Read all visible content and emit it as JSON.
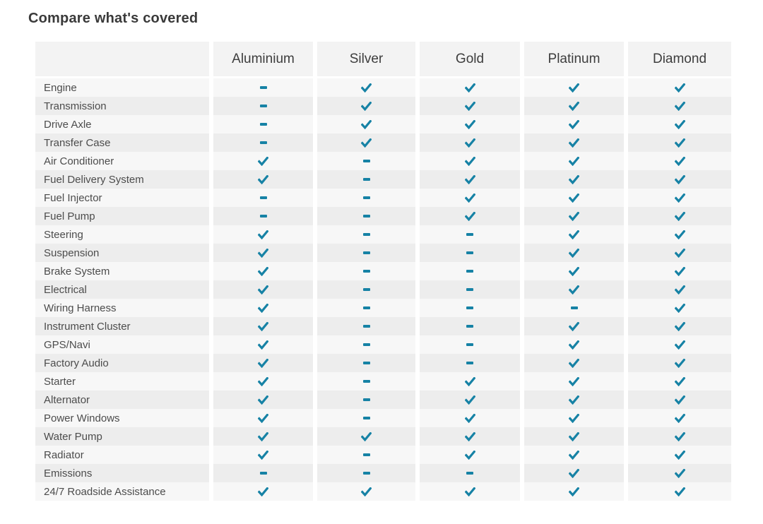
{
  "page": {
    "title": "Compare what's covered"
  },
  "table": {
    "columns": [
      "Aluminium",
      "Silver",
      "Gold",
      "Platinum",
      "Diamond"
    ],
    "icons": {
      "covered": "check-icon",
      "not_covered": "dash-icon"
    },
    "rows": [
      {
        "label": "Engine",
        "values": [
          false,
          true,
          true,
          true,
          true
        ]
      },
      {
        "label": "Transmission",
        "values": [
          false,
          true,
          true,
          true,
          true
        ]
      },
      {
        "label": "Drive Axle",
        "values": [
          false,
          true,
          true,
          true,
          true
        ]
      },
      {
        "label": "Transfer Case",
        "values": [
          false,
          true,
          true,
          true,
          true
        ]
      },
      {
        "label": "Air Conditioner",
        "values": [
          true,
          false,
          true,
          true,
          true
        ]
      },
      {
        "label": "Fuel Delivery System",
        "values": [
          true,
          false,
          true,
          true,
          true
        ]
      },
      {
        "label": "Fuel Injector",
        "values": [
          false,
          false,
          true,
          true,
          true
        ]
      },
      {
        "label": "Fuel Pump",
        "values": [
          false,
          false,
          true,
          true,
          true
        ]
      },
      {
        "label": "Steering",
        "values": [
          true,
          false,
          false,
          true,
          true
        ]
      },
      {
        "label": "Suspension",
        "values": [
          true,
          false,
          false,
          true,
          true
        ]
      },
      {
        "label": "Brake System",
        "values": [
          true,
          false,
          false,
          true,
          true
        ]
      },
      {
        "label": "Electrical",
        "values": [
          true,
          false,
          false,
          true,
          true
        ]
      },
      {
        "label": "Wiring Harness",
        "values": [
          true,
          false,
          false,
          false,
          true
        ]
      },
      {
        "label": "Instrument Cluster",
        "values": [
          true,
          false,
          false,
          true,
          true
        ]
      },
      {
        "label": "GPS/Navi",
        "values": [
          true,
          false,
          false,
          true,
          true
        ]
      },
      {
        "label": "Factory Audio",
        "values": [
          true,
          false,
          false,
          true,
          true
        ]
      },
      {
        "label": "Starter",
        "values": [
          true,
          false,
          true,
          true,
          true
        ]
      },
      {
        "label": "Alternator",
        "values": [
          true,
          false,
          true,
          true,
          true
        ]
      },
      {
        "label": "Power Windows",
        "values": [
          true,
          false,
          true,
          true,
          true
        ]
      },
      {
        "label": "Water Pump",
        "values": [
          true,
          true,
          true,
          true,
          true
        ]
      },
      {
        "label": "Radiator",
        "values": [
          true,
          false,
          true,
          true,
          true
        ]
      },
      {
        "label": "Emissions",
        "values": [
          false,
          false,
          false,
          true,
          true
        ]
      },
      {
        "label": "24/7 Roadside Assistance",
        "values": [
          true,
          true,
          true,
          true,
          true
        ]
      }
    ]
  },
  "colors": {
    "accent": "#1682a5",
    "row_odd": "#f7f7f7",
    "row_even": "#ededed",
    "header_bg": "#f3f3f3"
  }
}
